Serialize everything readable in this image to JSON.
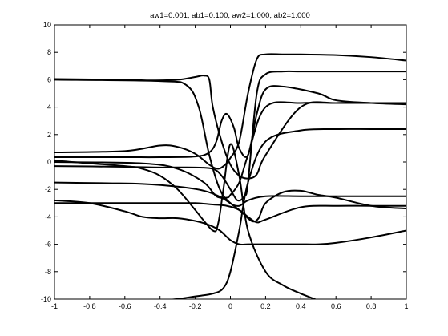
{
  "chart_data": {
    "type": "line",
    "title": "aw1=0.001, ab1=0.100, aw2=1.000, ab2=1.000",
    "xlabel": "",
    "ylabel": "",
    "xlim": [
      -1,
      1
    ],
    "ylim": [
      -10,
      10
    ],
    "grid": false,
    "legend": "none",
    "line_color": "#000000",
    "x_ticks": [
      -1,
      -0.8,
      -0.6,
      -0.4,
      -0.2,
      0,
      0.2,
      0.4,
      0.6,
      0.8,
      1
    ],
    "x_tick_labels": [
      "-1",
      "-0.8",
      "-0.6",
      "-0.4",
      "-0.2",
      "0",
      "0.2",
      "0.4",
      "0.6",
      "0.8",
      "1"
    ],
    "y_ticks": [
      -10,
      -8,
      -6,
      -4,
      -2,
      0,
      2,
      4,
      6,
      8,
      10
    ],
    "y_tick_labels": [
      "-10",
      "-8",
      "-6",
      "-4",
      "-2",
      "0",
      "2",
      "4",
      "6",
      "8",
      "10"
    ],
    "series": [
      {
        "x": [
          -1,
          -0.4,
          -0.2,
          -0.1,
          -0.04,
          0.0,
          0.05,
          0.1,
          0.2,
          0.4,
          0.6,
          0.8,
          1
        ],
        "y": [
          -10.5,
          -10.1,
          -9.8,
          -9.6,
          -9.2,
          -8.0,
          -5.0,
          -1.5,
          1.5,
          2.3,
          2.4,
          2.4,
          2.4
        ]
      },
      {
        "x": [
          -1,
          -0.4,
          -0.25,
          -0.18,
          -0.12,
          -0.06,
          0.0,
          0.05,
          0.1,
          0.2,
          0.4,
          0.6,
          0.8,
          1
        ],
        "y": [
          6.0,
          5.9,
          5.6,
          4.0,
          0.5,
          -2.0,
          -3.0,
          -3.2,
          -2.8,
          -2.5,
          -2.5,
          -2.5,
          -2.5,
          -2.5
        ]
      },
      {
        "x": [
          -1,
          -0.5,
          -0.3,
          -0.15,
          -0.08,
          -0.02,
          0.0,
          0.05,
          0.1,
          0.2,
          0.4,
          0.6,
          0.8,
          1
        ],
        "y": [
          0.0,
          -0.1,
          -0.5,
          -1.5,
          -2.5,
          -2.6,
          -2.4,
          -1.5,
          0.5,
          4.0,
          4.3,
          4.3,
          4.3,
          4.3
        ]
      },
      {
        "x": [
          -1,
          -0.7,
          -0.5,
          -0.3,
          -0.15,
          -0.05,
          0.05,
          0.12,
          0.16,
          0.2,
          0.3,
          0.4,
          0.5,
          0.6,
          0.8,
          1
        ],
        "y": [
          -1.5,
          -1.55,
          -1.6,
          -1.8,
          -2.1,
          -2.6,
          -3.5,
          -4.3,
          -4.1,
          -3.0,
          -2.2,
          -2.1,
          -2.4,
          -2.6,
          -3.2,
          -3.4
        ]
      },
      {
        "x": [
          -1,
          -0.7,
          -0.5,
          -0.3,
          -0.2,
          -0.1,
          -0.02,
          0.05,
          0.1,
          0.15,
          0.2,
          0.4,
          0.6,
          0.8,
          1
        ],
        "y": [
          -3.0,
          -3.0,
          -3.0,
          -3.0,
          -3.0,
          -3.1,
          -3.2,
          -3.5,
          -4.0,
          -4.4,
          -4.2,
          -3.3,
          -3.2,
          -3.2,
          -3.2
        ]
      },
      {
        "x": [
          -1,
          -0.8,
          -0.6,
          -0.5,
          -0.4,
          -0.3,
          -0.2,
          -0.12,
          -0.06,
          0.0,
          0.05,
          0.1,
          0.2,
          0.3,
          0.4,
          0.5,
          0.6,
          0.8,
          1
        ],
        "y": [
          -2.8,
          -3.0,
          -3.6,
          -4.0,
          -4.1,
          -4.1,
          -4.3,
          -4.6,
          -5.0,
          -5.7,
          -6.0,
          -6.0,
          -6.0,
          -6.0,
          -6.0,
          -6.0,
          -5.9,
          -5.5,
          -5.0
        ]
      },
      {
        "x": [
          -1,
          -0.6,
          -0.4,
          -0.3,
          -0.2,
          -0.12,
          -0.07,
          -0.03,
          0.0,
          0.05,
          0.1,
          0.15,
          0.2,
          0.3,
          0.4,
          0.6,
          0.8,
          1
        ],
        "y": [
          0.7,
          0.8,
          1.2,
          1.1,
          0.6,
          -0.2,
          -0.5,
          -0.2,
          0.3,
          1.5,
          5.0,
          7.5,
          7.85,
          7.85,
          7.85,
          7.8,
          7.65,
          7.4
        ]
      },
      {
        "x": [
          -1,
          -0.6,
          -0.45,
          -0.3,
          -0.2,
          -0.15,
          -0.12,
          -0.1,
          -0.05,
          0.0,
          0.05,
          0.1,
          0.15,
          0.2,
          0.4,
          0.6,
          0.8,
          1
        ],
        "y": [
          6.05,
          6.0,
          5.95,
          6.0,
          6.2,
          6.3,
          6.0,
          4.0,
          1.5,
          -0.2,
          -1.0,
          -1.2,
          -0.9,
          0.5,
          4.0,
          4.3,
          4.3,
          4.3
        ]
      },
      {
        "x": [
          -1,
          -0.6,
          -0.4,
          -0.2,
          -0.12,
          -0.08,
          -0.05,
          -0.02,
          0.02,
          0.05,
          0.1,
          0.15,
          0.2,
          0.3,
          0.5,
          0.6,
          0.8,
          1
        ],
        "y": [
          0.35,
          0.35,
          0.35,
          0.4,
          0.7,
          1.5,
          3.0,
          3.5,
          2.5,
          1.0,
          0.5,
          3.5,
          5.3,
          5.5,
          5.0,
          4.5,
          4.3,
          4.2
        ]
      },
      {
        "x": [
          -1,
          -0.6,
          -0.4,
          -0.2,
          -0.1,
          -0.05,
          0.0,
          0.04,
          0.08,
          0.1,
          0.15,
          0.2,
          0.3,
          0.4,
          0.6,
          0.8,
          1
        ],
        "y": [
          -0.3,
          -0.35,
          -0.4,
          -0.4,
          -0.5,
          -1.0,
          -2.0,
          -2.8,
          -2.5,
          -1.5,
          5.0,
          6.4,
          6.6,
          6.6,
          6.6,
          6.6,
          6.6
        ]
      },
      {
        "x": [
          -1,
          -0.6,
          -0.5,
          -0.4,
          -0.3,
          -0.2,
          -0.1,
          -0.07,
          -0.04,
          0.0,
          0.05,
          0.1,
          0.2,
          0.3,
          0.4,
          0.5
        ],
        "y": [
          0.1,
          -0.3,
          -0.5,
          -1.0,
          -2.0,
          -3.5,
          -5.0,
          -4.5,
          -2.0,
          1.3,
          -1.0,
          -5.0,
          -8.0,
          -9.0,
          -9.6,
          -10.1
        ]
      }
    ]
  }
}
